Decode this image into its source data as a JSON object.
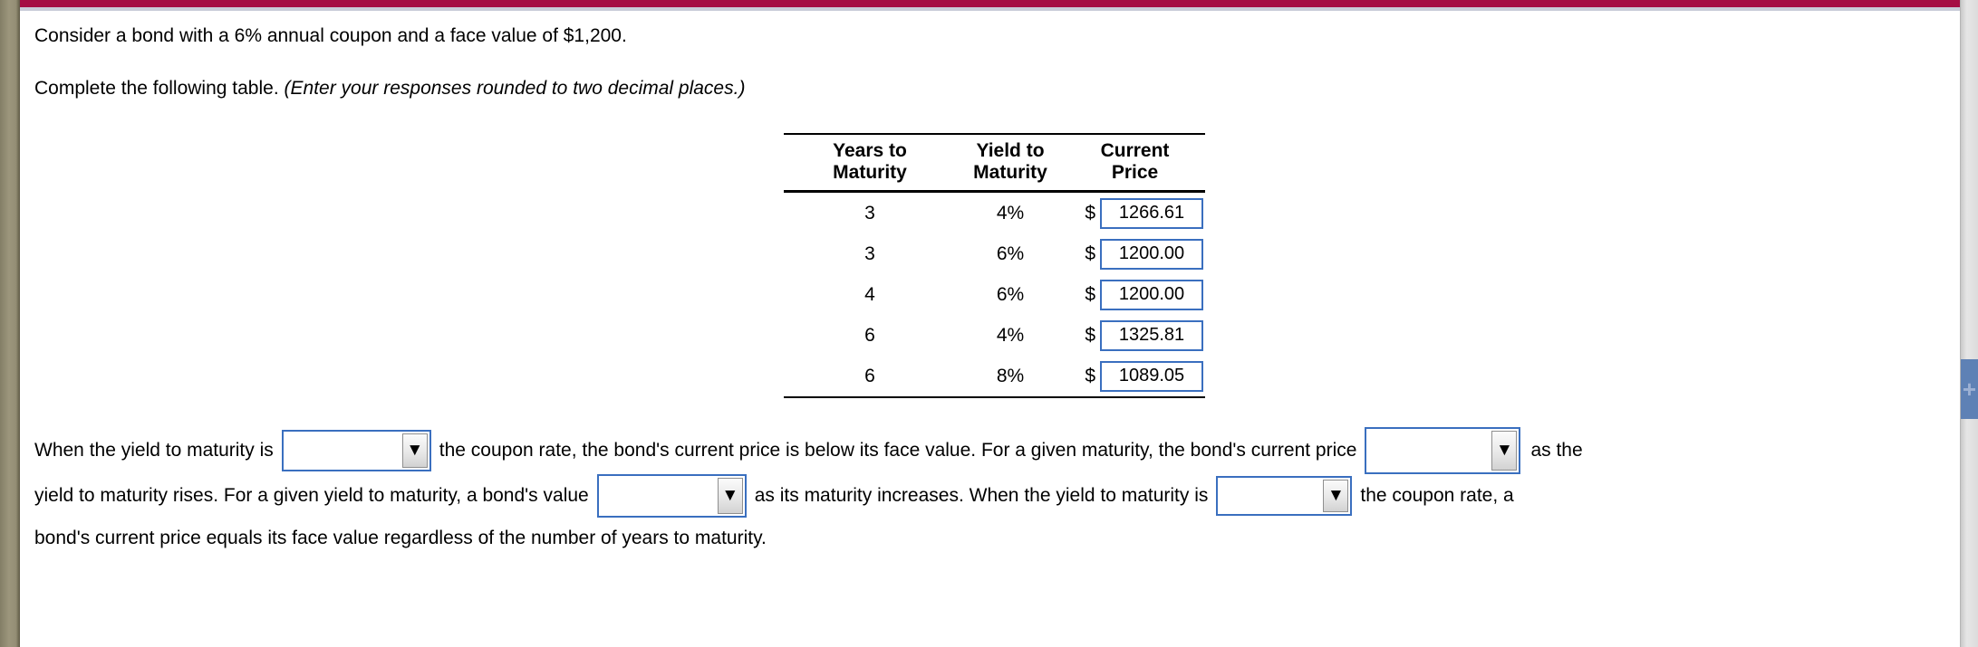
{
  "question": {
    "line1": "Consider a bond with a 6% annual coupon and a face value of $1,200.",
    "line2_normal": "Complete the following table. ",
    "line2_italic": "(Enter your responses rounded to two decimal places.)"
  },
  "table": {
    "headers": [
      {
        "l1": "Years to",
        "l2": "Maturity"
      },
      {
        "l1": "Yield to",
        "l2": "Maturity"
      },
      {
        "l1": "Current",
        "l2": "Price"
      }
    ],
    "rows": [
      {
        "years": "3",
        "ytm": "4%",
        "currency": "$",
        "price": "1266.61"
      },
      {
        "years": "3",
        "ytm": "6%",
        "currency": "$",
        "price": "1200.00"
      },
      {
        "years": "4",
        "ytm": "6%",
        "currency": "$",
        "price": "1200.00"
      },
      {
        "years": "6",
        "ytm": "4%",
        "currency": "$",
        "price": "1325.81"
      },
      {
        "years": "6",
        "ytm": "8%",
        "currency": "$",
        "price": "1089.05"
      }
    ]
  },
  "fill": {
    "line1_part1": "When the yield to maturity is",
    "line1_part2": "the coupon rate, the bond's current price is below its face value. For a given maturity, the bond's current price",
    "line1_part3": "as the",
    "line2_part1": "yield to maturity rises. For a given yield to maturity, a bond's value",
    "line2_part2": "as its maturity increases. When the yield to maturity is",
    "line2_part3": "the coupon rate, a",
    "line3": "bond's current price equals its face value regardless of the number of years to maturity.",
    "dropdown1_value": "",
    "dropdown2_value": "",
    "dropdown3_value": "",
    "dropdown4_value": ""
  },
  "icons": {
    "dropdown_arrow": "▼",
    "scroll_expand": "+"
  },
  "colors": {
    "top_bar": "#a50d45",
    "top_bar_underline": "#c9ccd9",
    "left_bar": "#938d74",
    "input_border": "#3a6fbf",
    "scroll_expand_button": "#5e81b5"
  }
}
